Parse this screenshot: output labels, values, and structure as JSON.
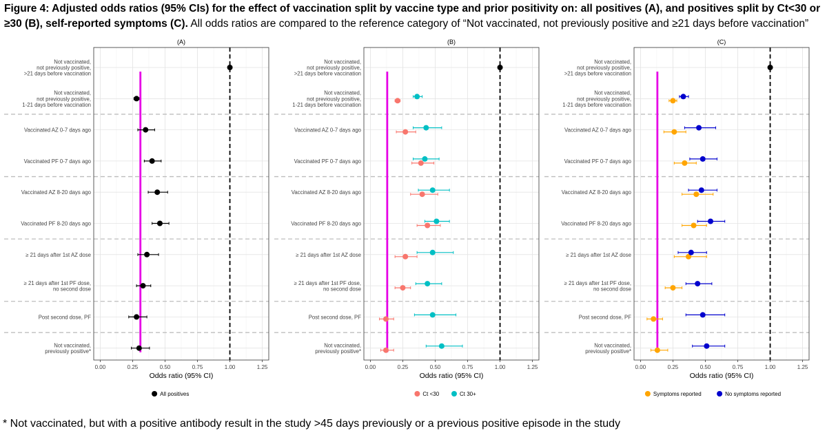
{
  "caption": {
    "bold": "Figure 4: Adjusted odds ratios (95% CIs) for the effect of vaccination split by vaccine type and prior positivity on: all positives (A), and positives split by Ct<30 or ≥30 (B), self-reported symptoms (C).",
    "normal": " All odds ratios are compared to the reference category of “Not vaccinated, not previously positive and ≥21 days before vaccination”"
  },
  "footnote": "* Not vaccinated, but with a positive antibody result in the study >45 days previously or a previous positive episode in the study",
  "chart_data": [
    {
      "type": "scatter",
      "panel": "(A)",
      "xlabel": "Odds ratio (95% CI)",
      "xlim": [
        -0.05,
        1.3
      ],
      "xticks": [
        "0.00",
        "0.25",
        "0.50",
        "0.75",
        "1.00",
        "1.25"
      ],
      "reference_line": 1.0,
      "vertical_line": 0.31,
      "categories": [
        "Not vaccinated,\nnot previously positive,\n>21 days before vaccination",
        "Not vaccinated,\nnot previously positive,\n1-21 days before vaccination",
        "Vaccinated AZ 0-7 days ago",
        "Vaccinated PF 0-7 days ago",
        "Vaccinated AZ 8-20 days ago",
        "Vaccinated PF 8-20 days ago",
        "≥ 21 days after 1st AZ dose",
        "≥ 21 days after 1st PF dose,\nno second dose",
        "Post second dose, PF",
        "Not vaccinated,\npreviously positive*"
      ],
      "separators_after": [
        1,
        3,
        5,
        7,
        8
      ],
      "grid": true,
      "legend": "bottom",
      "series": [
        {
          "name": "All positives",
          "color": "#000000",
          "points": [
            {
              "or": 1.0,
              "lo": 1.0,
              "hi": 1.0
            },
            {
              "or": 0.28,
              "lo": 0.26,
              "hi": 0.3
            },
            {
              "or": 0.35,
              "lo": 0.29,
              "hi": 0.42
            },
            {
              "or": 0.4,
              "lo": 0.34,
              "hi": 0.47
            },
            {
              "or": 0.44,
              "lo": 0.37,
              "hi": 0.52
            },
            {
              "or": 0.46,
              "lo": 0.4,
              "hi": 0.53
            },
            {
              "or": 0.36,
              "lo": 0.29,
              "hi": 0.45
            },
            {
              "or": 0.33,
              "lo": 0.28,
              "hi": 0.39
            },
            {
              "or": 0.28,
              "lo": 0.22,
              "hi": 0.36
            },
            {
              "or": 0.3,
              "lo": 0.24,
              "hi": 0.38
            }
          ]
        }
      ]
    },
    {
      "type": "scatter",
      "panel": "(B)",
      "xlabel": "Odds ratio (95% CI)",
      "xlim": [
        -0.05,
        1.3
      ],
      "xticks": [
        "0.00",
        "0.25",
        "0.50",
        "0.75",
        "1.00",
        "1.25"
      ],
      "reference_line": 1.0,
      "vertical_line": 0.13,
      "categories": [
        "Not vaccinated,\nnot previously positive,\n>21 days before vaccination",
        "Not vaccinated,\nnot previously positive,\n1-21 days before vaccination",
        "Vaccinated AZ 0-7 days ago",
        "Vaccinated PF 0-7 days ago",
        "Vaccinated AZ 8-20 days ago",
        "Vaccinated PF 8-20 days ago",
        "≥ 21 days after 1st AZ dose",
        "≥ 21 days after 1st PF dose,\nno second dose",
        "Post second dose, PF",
        "Not vaccinated,\npreviously positive*"
      ],
      "separators_after": [
        1,
        3,
        5,
        7,
        8
      ],
      "grid": true,
      "legend": "bottom",
      "series": [
        {
          "name": "Ct <30",
          "color": "#F8766D",
          "points": [
            null,
            {
              "or": 0.21,
              "lo": 0.19,
              "hi": 0.23
            },
            {
              "or": 0.27,
              "lo": 0.2,
              "hi": 0.35
            },
            {
              "or": 0.39,
              "lo": 0.32,
              "hi": 0.49
            },
            {
              "or": 0.4,
              "lo": 0.31,
              "hi": 0.52
            },
            {
              "or": 0.44,
              "lo": 0.36,
              "hi": 0.54
            },
            {
              "or": 0.27,
              "lo": 0.19,
              "hi": 0.36
            },
            {
              "or": 0.25,
              "lo": 0.19,
              "hi": 0.31
            },
            {
              "or": 0.12,
              "lo": 0.07,
              "hi": 0.18
            },
            {
              "or": 0.12,
              "lo": 0.08,
              "hi": 0.18
            }
          ]
        },
        {
          "name": "Ct 30+",
          "color": "#00BFC4",
          "points": [
            null,
            {
              "or": 0.36,
              "lo": 0.33,
              "hi": 0.4
            },
            {
              "or": 0.43,
              "lo": 0.33,
              "hi": 0.55
            },
            {
              "or": 0.42,
              "lo": 0.33,
              "hi": 0.53
            },
            {
              "or": 0.48,
              "lo": 0.37,
              "hi": 0.61
            },
            {
              "or": 0.51,
              "lo": 0.42,
              "hi": 0.61
            },
            {
              "or": 0.48,
              "lo": 0.36,
              "hi": 0.64
            },
            {
              "or": 0.44,
              "lo": 0.35,
              "hi": 0.55
            },
            {
              "or": 0.48,
              "lo": 0.34,
              "hi": 0.66
            },
            {
              "or": 0.55,
              "lo": 0.43,
              "hi": 0.71
            }
          ]
        },
        {
          "name": "",
          "color": "#000000",
          "legend": false,
          "points": [
            {
              "or": 1.0,
              "lo": 1.0,
              "hi": 1.0
            },
            null,
            null,
            null,
            null,
            null,
            null,
            null,
            null,
            null
          ]
        }
      ]
    },
    {
      "type": "scatter",
      "panel": "(C)",
      "xlabel": "Odds ratio (95% CI)",
      "xlim": [
        -0.05,
        1.3
      ],
      "xticks": [
        "0.00",
        "0.25",
        "0.50",
        "0.75",
        "1.00",
        "1.25"
      ],
      "reference_line": 1.0,
      "vertical_line": 0.13,
      "categories": [
        "Not vaccinated,\nnot previously positive,\n>21 days before vaccination",
        "Not vaccinated,\nnot previously positive,\n1-21 days before vaccination",
        "Vaccinated AZ 0-7 days ago",
        "Vaccinated PF 0-7 days ago",
        "Vaccinated AZ 8-20 days ago",
        "Vaccinated PF 8-20 days ago",
        "≥ 21 days after 1st AZ dose",
        "≥ 21 days after 1st PF dose,\nno second dose",
        "Post second dose, PF",
        "Not vaccinated,\npreviously positive*"
      ],
      "separators_after": [
        1,
        3,
        5,
        7,
        8
      ],
      "grid": true,
      "legend": "bottom",
      "series": [
        {
          "name": "Symptoms reported",
          "color": "#FFA500",
          "points": [
            null,
            {
              "or": 0.25,
              "lo": 0.22,
              "hi": 0.28
            },
            {
              "or": 0.26,
              "lo": 0.18,
              "hi": 0.35
            },
            {
              "or": 0.34,
              "lo": 0.26,
              "hi": 0.43
            },
            {
              "or": 0.43,
              "lo": 0.32,
              "hi": 0.56
            },
            {
              "or": 0.41,
              "lo": 0.32,
              "hi": 0.51
            },
            {
              "or": 0.37,
              "lo": 0.26,
              "hi": 0.51
            },
            {
              "or": 0.25,
              "lo": 0.19,
              "hi": 0.32
            },
            {
              "or": 0.1,
              "lo": 0.05,
              "hi": 0.17
            },
            {
              "or": 0.13,
              "lo": 0.08,
              "hi": 0.21
            }
          ]
        },
        {
          "name": "No symptoms reported",
          "color": "#0000CD",
          "points": [
            null,
            {
              "or": 0.33,
              "lo": 0.3,
              "hi": 0.37
            },
            {
              "or": 0.45,
              "lo": 0.34,
              "hi": 0.58
            },
            {
              "or": 0.48,
              "lo": 0.38,
              "hi": 0.59
            },
            {
              "or": 0.47,
              "lo": 0.37,
              "hi": 0.59
            },
            {
              "or": 0.54,
              "lo": 0.44,
              "hi": 0.65
            },
            {
              "or": 0.39,
              "lo": 0.29,
              "hi": 0.51
            },
            {
              "or": 0.44,
              "lo": 0.35,
              "hi": 0.55
            },
            {
              "or": 0.48,
              "lo": 0.35,
              "hi": 0.65
            },
            {
              "or": 0.51,
              "lo": 0.4,
              "hi": 0.65
            }
          ]
        },
        {
          "name": "",
          "color": "#000000",
          "legend": false,
          "points": [
            {
              "or": 1.0,
              "lo": 1.0,
              "hi": 1.0
            },
            null,
            null,
            null,
            null,
            null,
            null,
            null,
            null,
            null
          ]
        }
      ]
    }
  ]
}
